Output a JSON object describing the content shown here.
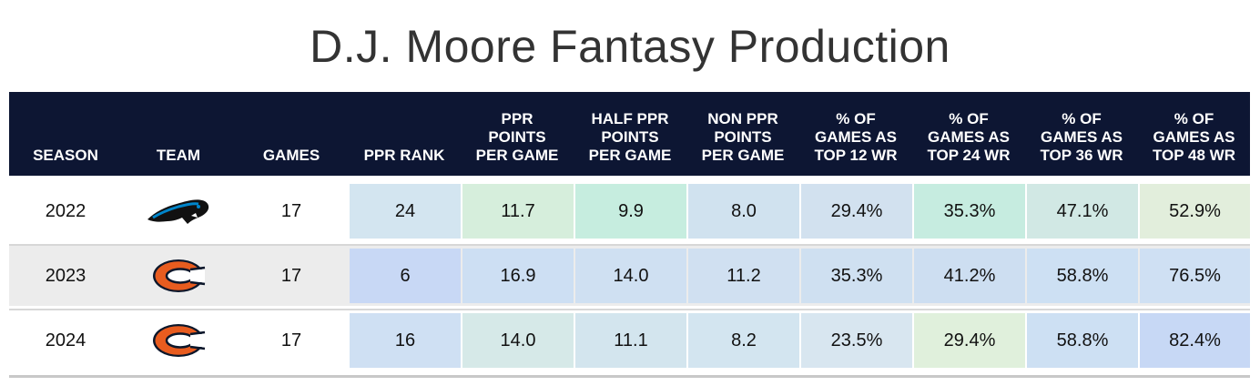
{
  "title": "D.J. Moore Fantasy Production",
  "chart_data": {
    "type": "table",
    "title": "D.J. Moore Fantasy Production",
    "columns": [
      "SEASON",
      "TEAM",
      "GAMES",
      "PPR RANK",
      "PPR\nPOINTS\nPER GAME",
      "HALF PPR\nPOINTS\nPER GAME",
      "NON PPR\nPOINTS\nPER GAME",
      "% OF\nGAMES AS\nTOP 12 WR",
      "% OF\nGAMES AS\nTOP 24 WR",
      "% OF\nGAMES AS\nTOP 36 WR",
      "% OF\nGAMES AS\nTOP 48 WR"
    ],
    "rows": [
      {
        "season": "2022",
        "team": "panthers-logo",
        "games": "17",
        "values": [
          "24",
          "11.7",
          "9.9",
          "8.0",
          "29.4%",
          "35.3%",
          "47.1%",
          "52.9%"
        ]
      },
      {
        "season": "2023",
        "team": "bears-logo",
        "games": "17",
        "values": [
          "6",
          "16.9",
          "14.0",
          "11.2",
          "35.3%",
          "41.2%",
          "58.8%",
          "76.5%"
        ]
      },
      {
        "season": "2024",
        "team": "bears-logo",
        "games": "17",
        "values": [
          "16",
          "14.0",
          "11.1",
          "8.2",
          "23.5%",
          "29.4%",
          "58.8%",
          "82.4%"
        ]
      }
    ],
    "cell_colors": [
      [
        "#d3e5f0",
        "#d6eedc",
        "#c6eddf",
        "#d0e2ef",
        "#d2e1ef",
        "#c6ece0",
        "#d1e8e4",
        "#e2eedc"
      ],
      [
        "#c8d8f5",
        "#cddff3",
        "#cfe0f2",
        "#d0e0f1",
        "#cfe0f1",
        "#cddef1",
        "#cde0f3",
        "#cfe0f3"
      ],
      [
        "#cfe0f3",
        "#d6e9e8",
        "#d3e5ee",
        "#d3e5f0",
        "#d8e6f0",
        "#e0f0dc",
        "#cde0f3",
        "#c7d8f5"
      ]
    ],
    "row_backgrounds": [
      "#ffffff",
      "#ececec",
      "#ffffff"
    ],
    "header_color": "#0d1633"
  }
}
